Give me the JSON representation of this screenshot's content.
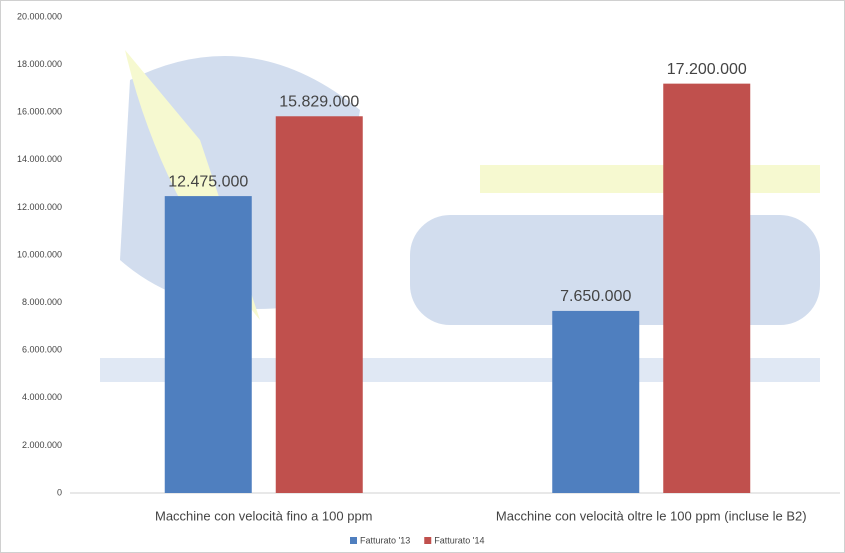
{
  "chart_data": {
    "type": "bar",
    "categories": [
      "Macchine con velocità fino a 100 ppm",
      "Macchine con velocità oltre le 100 ppm (incluse le B2)"
    ],
    "series": [
      {
        "name": "Fatturato '13",
        "color": "#4f7fbf",
        "values": [
          12475000,
          7650000
        ],
        "value_labels": [
          "12.475.000",
          "7.650.000"
        ]
      },
      {
        "name": "Fatturato '14",
        "color": "#c0504d",
        "values": [
          15829000,
          17200000
        ],
        "value_labels": [
          "15.829.000",
          "17.200.000"
        ]
      }
    ],
    "ylim": [
      0,
      20000000
    ],
    "yticks": [
      0,
      {
        "value": 2000000,
        "label": "2.000.000"
      },
      {
        "value": 4000000,
        "label": "4.000.000"
      },
      {
        "value": 6000000,
        "label": "6.000.000"
      },
      {
        "value": 8000000,
        "label": "8.000.000"
      },
      {
        "value": 10000000,
        "label": "10.000.000"
      },
      {
        "value": 12000000,
        "label": "12.000.000"
      },
      {
        "value": 14000000,
        "label": "14.000.000"
      },
      {
        "value": 16000000,
        "label": "16.000.000"
      },
      {
        "value": 18000000,
        "label": "18.000.000"
      },
      {
        "value": 20000000,
        "label": "20.000.000"
      }
    ],
    "grid": false,
    "legend": "bottom"
  }
}
